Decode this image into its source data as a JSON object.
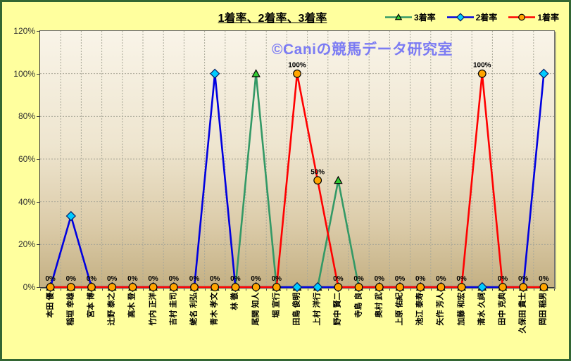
{
  "title": "1着率、2着率、3着率",
  "watermark": "©Caniの競馬データ研究室",
  "colors": {
    "page_background": "#ffff9e",
    "frame_border": "#336633",
    "plot_gradient_top": "#f9f4e8",
    "plot_gradient_bottom": "#c4b083",
    "gridline": "#a9a898",
    "axis": "#444444",
    "watermark": "#7b7bf3",
    "data_label_text": "#000000",
    "tick_text": "#333333"
  },
  "chart_data": {
    "type": "line",
    "title": "1着率、2着率、3着率",
    "categories": [
      "本田 優",
      "稲垣 幸雄",
      "宮本 博",
      "辻野 泰之",
      "高木 登",
      "竹内 正洋",
      "吉村 圭司",
      "蛯名 利弘",
      "青木 孝文",
      "林 徹",
      "尾関 知人",
      "堀 宣行",
      "田島 俊明",
      "上村 洋行",
      "野中 賢二",
      "寺島 良",
      "奥村 武",
      "上原 佑紀",
      "池江 泰寿",
      "矢作 芳人",
      "加藤 和宏",
      "清水 久詞",
      "田中 克典",
      "久保田 貴士",
      "岡田 稲男"
    ],
    "series": [
      {
        "name": "3着率",
        "key": "rank3-rate",
        "line_color": "#339966",
        "marker": "triangle",
        "marker_fill": "#33cc33",
        "marker_stroke": "#000000",
        "values": [
          0,
          0,
          0,
          0,
          0,
          0,
          0,
          0,
          0,
          0,
          100,
          0,
          0,
          0,
          50,
          0,
          0,
          0,
          0,
          0,
          0,
          0,
          0,
          0,
          0
        ],
        "data_labels": false
      },
      {
        "name": "2着率",
        "key": "rank2-rate",
        "line_color": "#0000e0",
        "marker": "diamond",
        "marker_fill": "#00ccff",
        "marker_stroke": "#001a66",
        "values": [
          0,
          33.3,
          0,
          0,
          0,
          0,
          0,
          0,
          100,
          0,
          0,
          0,
          0,
          0,
          0,
          0,
          0,
          0,
          0,
          0,
          0,
          0,
          0,
          0,
          100
        ],
        "data_labels": false
      },
      {
        "name": "1着率",
        "key": "rank1-rate",
        "line_color": "#ff0000",
        "marker": "circle",
        "marker_fill": "#ffa500",
        "marker_stroke": "#000000",
        "values": [
          0,
          0,
          0,
          0,
          0,
          0,
          0,
          0,
          0,
          0,
          0,
          0,
          100,
          50,
          0,
          0,
          0,
          0,
          0,
          0,
          0,
          100,
          0,
          0,
          0
        ],
        "data_labels": true
      }
    ],
    "ylim": [
      0,
      120
    ],
    "y_tick_step": 20,
    "y_tick_labels": [
      "0%",
      "20%",
      "40%",
      "60%",
      "80%",
      "100%",
      "120%"
    ],
    "grid": true,
    "legend_position": "top-right"
  }
}
